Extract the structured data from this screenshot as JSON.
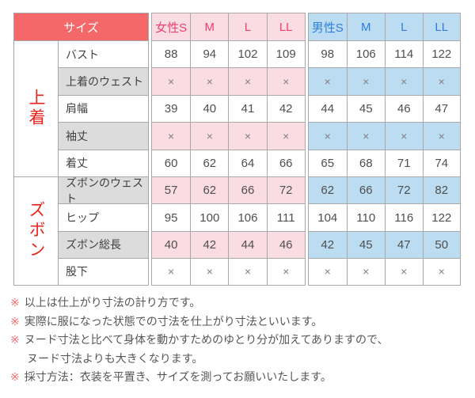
{
  "chart_data": {
    "type": "table",
    "corner_header": "サイズ",
    "female_headers": [
      "女性S",
      "M",
      "L",
      "LL"
    ],
    "male_headers": [
      "男性S",
      "M",
      "L",
      "LL"
    ],
    "groups": [
      {
        "label": "上着",
        "rows": [
          {
            "label": "バスト",
            "female": [
              "88",
              "94",
              "102",
              "109"
            ],
            "male": [
              "98",
              "106",
              "114",
              "122"
            ]
          },
          {
            "label": "上着のウェスト",
            "female": [
              "×",
              "×",
              "×",
              "×"
            ],
            "male": [
              "×",
              "×",
              "×",
              "×"
            ]
          },
          {
            "label": "肩幅",
            "female": [
              "39",
              "40",
              "41",
              "42"
            ],
            "male": [
              "44",
              "45",
              "46",
              "47"
            ]
          },
          {
            "label": "袖丈",
            "female": [
              "×",
              "×",
              "×",
              "×"
            ],
            "male": [
              "×",
              "×",
              "×",
              "×"
            ]
          },
          {
            "label": "着丈",
            "female": [
              "60",
              "62",
              "64",
              "66"
            ],
            "male": [
              "65",
              "68",
              "71",
              "74"
            ]
          }
        ]
      },
      {
        "label": "ズボン",
        "rows": [
          {
            "label": "ズボンのウェスト",
            "female": [
              "57",
              "62",
              "66",
              "72"
            ],
            "male": [
              "62",
              "66",
              "72",
              "82"
            ]
          },
          {
            "label": "ヒップ",
            "female": [
              "95",
              "100",
              "106",
              "111"
            ],
            "male": [
              "104",
              "110",
              "116",
              "122"
            ]
          },
          {
            "label": "ズボン総長",
            "female": [
              "40",
              "42",
              "44",
              "46"
            ],
            "male": [
              "42",
              "45",
              "47",
              "50"
            ]
          },
          {
            "label": "股下",
            "female": [
              "×",
              "×",
              "×",
              "×"
            ],
            "male": [
              "×",
              "×",
              "×",
              "×"
            ]
          }
        ]
      }
    ]
  },
  "notes": [
    {
      "marker": "※",
      "text": "以上は仕上がり寸法の計り方です。"
    },
    {
      "marker": "※",
      "text": "実際に服になった状態での寸法を仕上がり寸法といいます。"
    },
    {
      "marker": "※",
      "text": "ヌード寸法と比べて身体を動かすためのゆとり分が加えてありますので、",
      "text2": "ヌード寸法よりも大きくなります。"
    },
    {
      "marker": "※",
      "text": "採寸方法：衣装を平置き、サイズを測ってお願いいたします。"
    }
  ],
  "colors": {
    "header_red": "#f5686a",
    "female_bg": "#fadde2",
    "female_text": "#ee3f6e",
    "male_bg": "#bcdcf1",
    "male_text": "#2e7fe0",
    "group_label_red": "#e8231d",
    "shaded_row_gray": "#dcdcdc",
    "border_gray": "#a8a8a8",
    "note_marker_red": "#ed6d6e"
  }
}
